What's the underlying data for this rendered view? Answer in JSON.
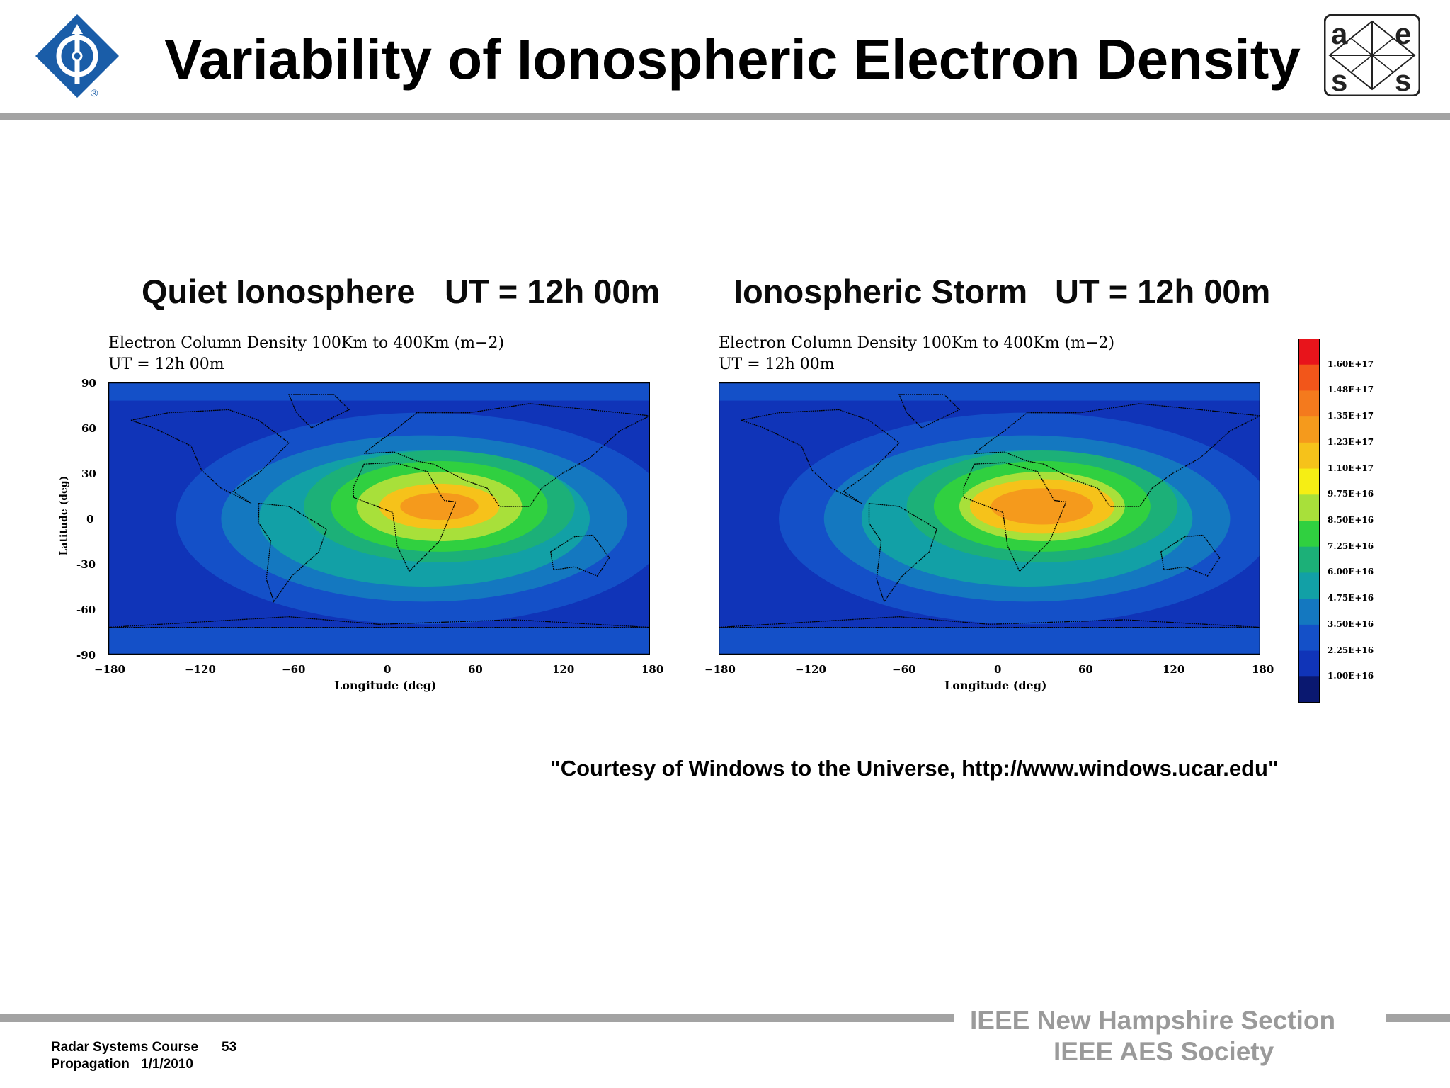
{
  "slide": {
    "title": "Variability of Ionospheric Electron Density",
    "courtesy": "\"Courtesy of Windows to the Universe, http://www.windows.ucar.edu\"",
    "footer_right_line1": "IEEE New Hampshire Section",
    "footer_right_line2": "IEEE AES Society",
    "footer_left_course": "Radar Systems Course",
    "footer_left_page": "53",
    "footer_left_topic": "Propagation",
    "footer_left_date": "1/1/2010",
    "ieee_logo": "ieee-diamond-logo",
    "aes_logo": {
      "letters": [
        "a",
        "e",
        "s",
        "s"
      ]
    }
  },
  "panels": [
    {
      "heading_left": "Quiet Ionosphere",
      "heading_right": "UT = 12h 00m",
      "map_title": "Electron Column Density 100Km to 400Km (m−2)",
      "map_time": "UT = 12h 00m",
      "xlabel": "Longitude (deg)",
      "ylabel": "Latitude (deg)",
      "state": "quiet"
    },
    {
      "heading_left": "Ionospheric Storm",
      "heading_right": "UT = 12h 00m",
      "map_title": "Electron Column Density 100Km to 400Km (m−2)",
      "map_time": "UT = 12h 00m",
      "xlabel": "Longitude (deg)",
      "ylabel": "",
      "state": "storm"
    }
  ],
  "axes": {
    "x_ticks": [
      "−180",
      "−120",
      "−60",
      "0",
      "60",
      "120",
      "180"
    ],
    "y_ticks": [
      "90",
      "60",
      "30",
      "0",
      "-30",
      "-60",
      "-90"
    ]
  },
  "colorbar": {
    "labels": [
      "1.60E+17",
      "1.48E+17",
      "1.35E+17",
      "1.23E+17",
      "1.10E+17",
      "9.75E+16",
      "8.50E+16",
      "7.25E+16",
      "6.00E+16",
      "4.75E+16",
      "3.50E+16",
      "2.25E+16",
      "1.00E+16"
    ],
    "colors": [
      "#e8141b",
      "#f2561a",
      "#f47a1d",
      "#f59a1c",
      "#f6c21a",
      "#f6ee14",
      "#a8e03a",
      "#30d040",
      "#1cb078",
      "#12a0a6",
      "#1478c0",
      "#1450c8",
      "#1034b8",
      "#0a1870"
    ]
  }
}
